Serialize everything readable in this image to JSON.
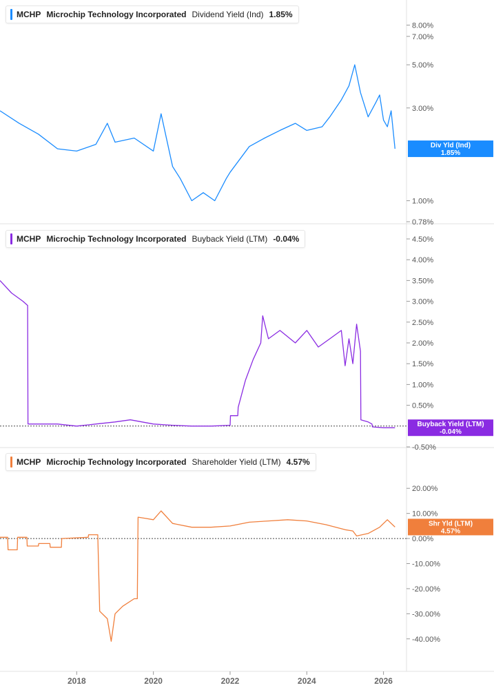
{
  "colors": {
    "dividend": "#1a8cff",
    "buyback": "#8a2be2",
    "shareholder": "#f07f3c",
    "grid": "#e0e0e0",
    "zero_line": "#444444"
  },
  "chart_data": [
    {
      "type": "line",
      "legend": {
        "ticker": "MCHP",
        "company": "Microchip Technology Incorporated",
        "metric": "Dividend Yield (Ind)",
        "value": "1.85%"
      },
      "badge": {
        "line1": "Div Yld (Ind)",
        "line2": "1.85%"
      },
      "y_scale": "log",
      "ylim": [
        0.78,
        9.0
      ],
      "y_ticks": [
        8.0,
        7.0,
        5.0,
        3.0,
        1.0,
        0.78
      ],
      "y_tick_labels": [
        "8.00%",
        "7.00%",
        "5.00%",
        "3.00%",
        "1.00%",
        "0.78%"
      ],
      "series": [
        {
          "x": [
            2016.0,
            2016.5,
            2017.0,
            2017.5,
            2018.0,
            2018.5,
            2018.8,
            2019.0,
            2019.5,
            2020.0,
            2020.2,
            2020.5,
            2020.7,
            2021.0,
            2021.3,
            2021.6,
            2021.9,
            2022.0,
            2022.5,
            2022.9,
            2023.3,
            2023.7,
            2024.0,
            2024.4,
            2024.6,
            2024.9,
            2025.1,
            2025.25,
            2025.4,
            2025.6,
            2025.8,
            2025.9,
            2026.0,
            2026.1,
            2026.2,
            2026.3
          ],
          "values": [
            2.9,
            2.5,
            2.2,
            1.85,
            1.8,
            1.95,
            2.5,
            2.0,
            2.1,
            1.8,
            2.8,
            1.5,
            1.3,
            1.0,
            1.1,
            1.0,
            1.3,
            1.4,
            1.9,
            2.1,
            2.3,
            2.5,
            2.3,
            2.4,
            2.7,
            3.3,
            3.9,
            5.0,
            3.6,
            2.7,
            3.2,
            3.5,
            2.6,
            2.4,
            2.9,
            1.85
          ]
        }
      ]
    },
    {
      "type": "line",
      "legend": {
        "ticker": "MCHP",
        "company": "Microchip Technology Incorporated",
        "metric": "Buyback Yield (LTM)",
        "value": "-0.04%"
      },
      "badge": {
        "line1": "Buyback Yield (LTM)",
        "line2": "-0.04%"
      },
      "y_scale": "linear",
      "ylim": [
        -0.5,
        4.5
      ],
      "y_ticks": [
        4.5,
        4.0,
        3.5,
        3.0,
        2.5,
        2.0,
        1.5,
        1.0,
        0.5,
        -0.5
      ],
      "y_tick_labels": [
        "4.50%",
        "4.00%",
        "3.50%",
        "3.00%",
        "2.50%",
        "2.00%",
        "1.50%",
        "1.00%",
        "0.50%",
        "-0.50%"
      ],
      "zero_line": true,
      "series": [
        {
          "x": [
            2016.0,
            2016.3,
            2016.6,
            2016.72,
            2016.73,
            2017.5,
            2018.0,
            2018.5,
            2019.0,
            2019.4,
            2020.0,
            2020.5,
            2021.0,
            2021.5,
            2022.0,
            2022.01,
            2022.2,
            2022.21,
            2022.4,
            2022.6,
            2022.8,
            2022.85,
            2023.0,
            2023.3,
            2023.7,
            2024.0,
            2024.3,
            2024.6,
            2024.9,
            2025.0,
            2025.1,
            2025.2,
            2025.3,
            2025.4,
            2025.41,
            2025.6,
            2025.7,
            2025.71,
            2026.0,
            2026.3
          ],
          "values": [
            3.5,
            3.2,
            3.0,
            2.9,
            0.05,
            0.05,
            0.0,
            0.05,
            0.1,
            0.15,
            0.05,
            0.02,
            0.0,
            0.0,
            0.02,
            0.25,
            0.25,
            0.45,
            1.1,
            1.6,
            2.0,
            2.65,
            2.1,
            2.3,
            2.0,
            2.3,
            1.9,
            2.1,
            2.3,
            1.45,
            2.1,
            1.5,
            2.45,
            1.8,
            0.15,
            0.1,
            0.05,
            -0.02,
            -0.04,
            -0.04
          ]
        }
      ]
    },
    {
      "type": "line",
      "legend": {
        "ticker": "MCHP",
        "company": "Microchip Technology Incorporated",
        "metric": "Shareholder Yield (LTM)",
        "value": "4.57%"
      },
      "badge": {
        "line1": "Shr Yld (LTM)",
        "line2": "4.57%"
      },
      "y_scale": "linear",
      "ylim": [
        -45,
        25
      ],
      "y_ticks": [
        20,
        10,
        0,
        -10,
        -20,
        -30,
        -40
      ],
      "y_tick_labels": [
        "20.00%",
        "10.00%",
        "0.00%",
        "-10.00%",
        "-20.00%",
        "-30.00%",
        "-40.00%"
      ],
      "zero_line": true,
      "series": [
        {
          "x": [
            2016.0,
            2016.2,
            2016.21,
            2016.45,
            2016.46,
            2016.7,
            2016.71,
            2017.0,
            2017.01,
            2017.3,
            2017.31,
            2017.6,
            2017.61,
            2018.3,
            2018.31,
            2018.55,
            2018.6,
            2018.8,
            2018.9,
            2019.0,
            2019.2,
            2019.5,
            2019.58,
            2019.6,
            2019.8,
            2020.0,
            2020.2,
            2020.5,
            2021.0,
            2021.5,
            2022.0,
            2022.5,
            2023.0,
            2023.5,
            2024.0,
            2024.5,
            2025.0,
            2025.2,
            2025.3,
            2025.6,
            2025.9,
            2026.1,
            2026.3
          ],
          "values": [
            0.5,
            0.5,
            -4.5,
            -4.5,
            0.5,
            0.5,
            -3.0,
            -3.0,
            -2.0,
            -2.0,
            -3.5,
            -3.5,
            0.0,
            0.5,
            1.5,
            1.5,
            -29.0,
            -32.0,
            -41.0,
            -30.0,
            -27.0,
            -24.0,
            -24.0,
            8.5,
            8.0,
            7.5,
            11.0,
            6.0,
            4.5,
            4.5,
            5.0,
            6.5,
            7.0,
            7.5,
            7.0,
            5.5,
            3.5,
            3.0,
            1.0,
            2.0,
            4.5,
            7.5,
            4.57
          ]
        }
      ]
    }
  ],
  "x_axis": {
    "ticks": [
      2018,
      2020,
      2022,
      2024,
      2026
    ],
    "tick_labels": [
      "2018",
      "2020",
      "2022",
      "2024",
      "2026"
    ],
    "xlim": [
      2016.0,
      2026.6
    ]
  }
}
